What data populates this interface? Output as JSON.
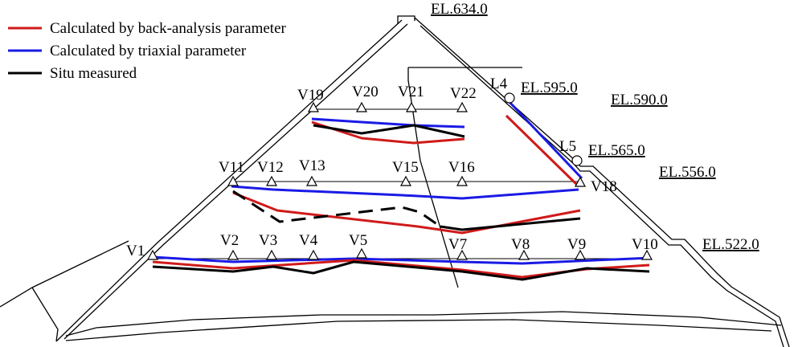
{
  "legend": [
    {
      "label": "Calculated by back-analysis parameter",
      "color": "#d01a1a"
    },
    {
      "label": "Calculated by triaxial parameter",
      "color": "#1a1ae6"
    },
    {
      "label": "Situ measured",
      "color": "#000000"
    }
  ],
  "colors": {
    "back_analysis": "#d01a1a",
    "triaxial": "#1a1ae6",
    "measured": "#000000",
    "outline": "#000000"
  },
  "elevations": {
    "el634": "EL.634.0",
    "el595": "EL.595.0",
    "el590": "EL.590.0",
    "el565": "EL.565.0",
    "el556": "EL.556.0",
    "el522": "EL.522.0"
  },
  "points": {
    "L4": "L4",
    "L5": "L5",
    "V1": "V1",
    "V2": "V2",
    "V3": "V3",
    "V4": "V4",
    "V5": "V5",
    "V7": "V7",
    "V8": "V8",
    "V9": "V9",
    "V10": "V10",
    "V11": "V11",
    "V12": "V12",
    "V13": "V13",
    "V15": "V15",
    "V16": "V16",
    "V18": "V18",
    "V19": "V19",
    "V20": "V20",
    "V21": "V21",
    "V22": "V22"
  }
}
